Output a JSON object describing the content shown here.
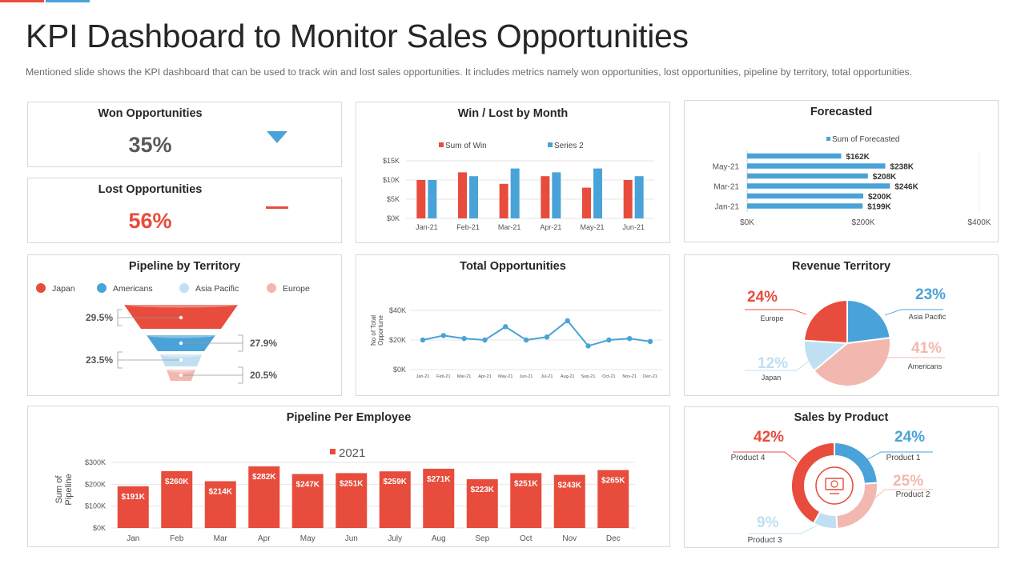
{
  "header": {
    "title": "KPI Dashboard to Monitor Sales Opportunities",
    "subtitle": "Mentioned slide shows the KPI dashboard that can be used to track win and lost sales opportunities. It includes metrics namely won opportunities, lost opportunities, pipeline by territory, total opportunities."
  },
  "colors": {
    "red": "#e74c3c",
    "blue": "#4aa3d8",
    "lightblue": "#bfe0f2",
    "pink": "#f2b8b0",
    "gray": "#595959"
  },
  "won": {
    "title": "Won Opportunities",
    "value": "35%",
    "indicator": "triangle-down-icon"
  },
  "lost": {
    "title": "Lost Opportunities",
    "value": "56%",
    "indicator": "dash-icon"
  },
  "chart_data": [
    {
      "id": "win_lost",
      "type": "bar",
      "title": "Win / Lost by Month",
      "categories": [
        "Jan-21",
        "Feb-21",
        "Mar-21",
        "Apr-21",
        "May-21",
        "Jun-21"
      ],
      "series": [
        {
          "name": "Sum of Win",
          "values": [
            10,
            12,
            9,
            11,
            8,
            10
          ]
        },
        {
          "name": "Series 2",
          "values": [
            10,
            11,
            13,
            12,
            13,
            11
          ]
        }
      ],
      "yticks": [
        "$0K",
        "$5K",
        "$10K",
        "$15K"
      ],
      "ylim": [
        0,
        15
      ]
    },
    {
      "id": "forecasted",
      "type": "bar",
      "orientation": "horizontal",
      "title": "Forecasted",
      "legend": "Sum of Forecasted",
      "values": [
        162,
        238,
        208,
        246,
        200,
        199
      ],
      "labels": [
        "$162K",
        "$238K",
        "$208K",
        "$246K",
        "$200K",
        "$199K"
      ],
      "ytick_labels": [
        "May-21",
        "Mar-21",
        "Jan-21"
      ],
      "xticks": [
        "$0K",
        "$200K",
        "$400K"
      ],
      "xlim": [
        0,
        400
      ]
    },
    {
      "id": "pipeline_territory",
      "type": "funnel",
      "title": "Pipeline by Territory",
      "legend": [
        "Japan",
        "Americans",
        "Asia Pacific",
        "Europe"
      ],
      "values": [
        29.5,
        27.9,
        23.5,
        20.5
      ],
      "labels": [
        "29.5%",
        "27.9%",
        "23.5%",
        "20.5%"
      ]
    },
    {
      "id": "total_opportunities",
      "type": "line",
      "title": "Total Opportunities",
      "ylabel": "No of Total Opportune",
      "categories": [
        "Jan-21",
        "Feb-21",
        "Mar-21",
        "Apr-21",
        "May-21",
        "Jun-21",
        "Jul-21",
        "Aug-21",
        "Sep-21",
        "Oct-21",
        "Nov-21",
        "Dec-21"
      ],
      "values": [
        20,
        23,
        21,
        20,
        29,
        20,
        22,
        33,
        16,
        20,
        21,
        19
      ],
      "yticks": [
        "$0K",
        "$20K",
        "$40K"
      ],
      "ylim": [
        0,
        40
      ]
    },
    {
      "id": "revenue_territory",
      "type": "pie",
      "title": "Revenue Territory",
      "labels": [
        "Asia Pacific",
        "Americans",
        "Japan",
        "Europe"
      ],
      "values": [
        23,
        41,
        12,
        24
      ],
      "pct_labels": [
        "23%",
        "41%",
        "12%",
        "24%"
      ]
    },
    {
      "id": "pipeline_employee",
      "type": "bar",
      "title": "Pipeline Per Employee",
      "legend": "2021",
      "ylabel": "Sum of Pipeline",
      "categories": [
        "Jan",
        "Feb",
        "Mar",
        "Apr",
        "May",
        "Jun",
        "July",
        "Aug",
        "Sep",
        "Oct",
        "Nov",
        "Dec"
      ],
      "values": [
        191,
        260,
        214,
        282,
        247,
        251,
        259,
        271,
        223,
        251,
        243,
        265
      ],
      "labels": [
        "$191K",
        "$260K",
        "$214K",
        "$282K",
        "$247K",
        "$251K",
        "$259K",
        "$271K",
        "$223K",
        "$251K",
        "$243K",
        "$265K"
      ],
      "yticks": [
        "$0K",
        "$100K",
        "$200K",
        "$300K"
      ],
      "ylim": [
        0,
        300
      ]
    },
    {
      "id": "sales_product",
      "type": "pie",
      "donut": true,
      "title": "Sales by Product",
      "labels": [
        "Product 1",
        "Product 2",
        "Product 3",
        "Product 4"
      ],
      "values": [
        24,
        25,
        9,
        42
      ],
      "pct_labels": [
        "24%",
        "25%",
        "9%",
        "42%"
      ],
      "center_icon": "product-display-icon"
    }
  ]
}
